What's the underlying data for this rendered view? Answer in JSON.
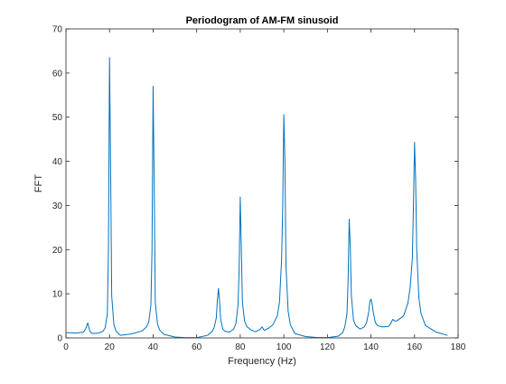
{
  "chart_data": {
    "type": "line",
    "title": "Periodogram of AM-FM sinusoid",
    "xlabel": "Frequency (Hz)",
    "ylabel": "FFT",
    "xlim": [
      0,
      180
    ],
    "ylim": [
      0,
      70
    ],
    "xticks": [
      0,
      20,
      40,
      60,
      80,
      100,
      120,
      140,
      160,
      180
    ],
    "yticks": [
      0,
      10,
      20,
      30,
      40,
      50,
      60,
      70
    ],
    "grid": false,
    "box": true,
    "line_color": "#0072bd",
    "series": [
      {
        "x": [
          0,
          5,
          8,
          9,
          10,
          10.5,
          11,
          12,
          15,
          17,
          18,
          19,
          19.5,
          20,
          20.5,
          21,
          22,
          23,
          25,
          30,
          35,
          37,
          38,
          39,
          39.5,
          40,
          40.5,
          41,
          42,
          43,
          45,
          50,
          55,
          60,
          65,
          67,
          68,
          69,
          69.5,
          70,
          70.5,
          71,
          72,
          73,
          75,
          77,
          78,
          79,
          79.5,
          80,
          80.5,
          81,
          82,
          83,
          85,
          87,
          89,
          90,
          91,
          93,
          95,
          97,
          98,
          99,
          99.5,
          100,
          100.5,
          101,
          102,
          103,
          105,
          110,
          115,
          120,
          125,
          127,
          128,
          129,
          129.5,
          130,
          130.5,
          131,
          132,
          133,
          135,
          137,
          138,
          139,
          139.5,
          140,
          140.5,
          141,
          142,
          143,
          145,
          148,
          149,
          150,
          151,
          152,
          155,
          157,
          158,
          159,
          159.5,
          160,
          160.5,
          161,
          162,
          163,
          165,
          170,
          175
        ],
        "y": [
          1.2,
          1.1,
          1.3,
          2.0,
          3.4,
          2.4,
          1.5,
          1.0,
          1.1,
          1.5,
          2.3,
          5.5,
          20,
          63.5,
          38,
          9.5,
          3.0,
          1.5,
          0.6,
          0.9,
          1.6,
          2.5,
          3.6,
          7.5,
          20,
          57,
          35,
          8,
          3.2,
          1.8,
          0.8,
          0.2,
          0.05,
          0.05,
          0.6,
          1.4,
          2.3,
          4.5,
          8.5,
          11.2,
          8.5,
          4.2,
          2.0,
          1.5,
          1.3,
          2.0,
          3.3,
          7.5,
          16,
          31.9,
          20,
          8,
          3.8,
          2.6,
          1.8,
          1.4,
          1.9,
          2.5,
          1.7,
          2.2,
          3.0,
          5.0,
          8.0,
          18,
          30,
          50.6,
          40,
          16,
          6.0,
          3.0,
          1.0,
          0.3,
          0.1,
          0.05,
          0.4,
          1.2,
          2.5,
          5.5,
          13,
          26.9,
          21,
          9.5,
          4.0,
          2.8,
          2.0,
          2.5,
          3.5,
          6.0,
          8.2,
          8.8,
          7.8,
          6.0,
          3.5,
          2.8,
          2.5,
          2.6,
          3.2,
          4.2,
          3.8,
          3.9,
          5.0,
          8.0,
          11.5,
          18,
          30,
          44.3,
          36,
          20,
          9.0,
          5.5,
          2.8,
          1.3,
          0.6
        ]
      }
    ]
  }
}
